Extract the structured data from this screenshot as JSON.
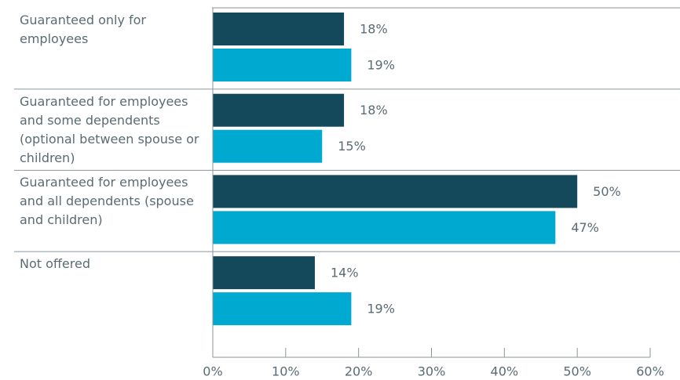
{
  "chart_data": {
    "type": "bar",
    "orientation": "horizontal",
    "categories": [
      "Guaranteed only for employees",
      "Guaranteed for employees and some dependents (optional between spouse or children)",
      "Guaranteed for employees and all dependents (spouse and children)",
      "Not offered"
    ],
    "series": [
      {
        "color": "#13495b",
        "values": [
          18,
          18,
          50,
          14
        ],
        "value_labels": [
          "18%",
          "18%",
          "50%",
          "14%"
        ]
      },
      {
        "color": "#00a9cf",
        "values": [
          19,
          15,
          47,
          19
        ],
        "value_labels": [
          "19%",
          "15%",
          "47%",
          "19%"
        ]
      }
    ],
    "xlim": [
      0,
      60
    ],
    "xticks": [
      {
        "value": 0,
        "label": "0%"
      },
      {
        "value": 10,
        "label": "10%"
      },
      {
        "value": 20,
        "label": "20%"
      },
      {
        "value": 30,
        "label": "30%"
      },
      {
        "value": 40,
        "label": "40%"
      },
      {
        "value": 50,
        "label": "50%"
      },
      {
        "value": 60,
        "label": "60%"
      }
    ]
  }
}
